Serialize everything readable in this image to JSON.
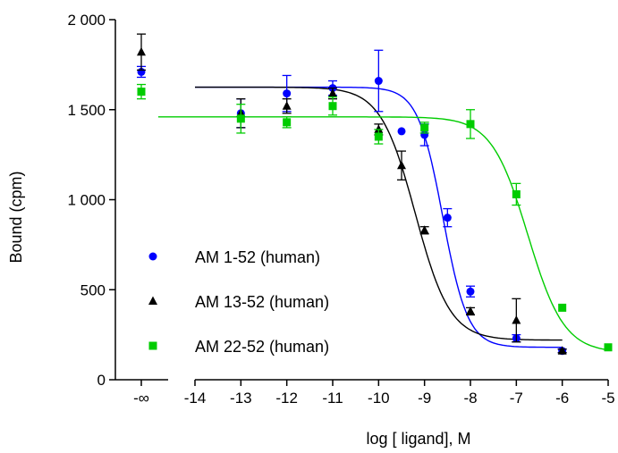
{
  "chart_data": {
    "type": "scatter",
    "title": "",
    "xlabel": "log [ ligand], M",
    "ylabel": "Bound (cpm)",
    "xlim": [
      -14,
      -5
    ],
    "ylim": [
      0,
      2000
    ],
    "x_ticks": [
      -14,
      -13,
      -12,
      -11,
      -10,
      -9,
      -8,
      -7,
      -6,
      -5
    ],
    "x_tick_labels": [
      "-14",
      "-13",
      "-12",
      "-11",
      "-10",
      "-9",
      "-8",
      "-7",
      "-6",
      "-5"
    ],
    "x_extra_tick_label": "-∞",
    "y_ticks": [
      0,
      500,
      1000,
      1500,
      2000
    ],
    "y_tick_labels": [
      "0",
      "500",
      "1 000",
      "1 500",
      "2 000"
    ],
    "grid": false,
    "legend_position": "bottom-left",
    "series": [
      {
        "name": "AM 1-52 (human)",
        "color": "#0000ff",
        "marker": "circle",
        "control": {
          "y": 1710,
          "err": 30
        },
        "x": [
          -13,
          -12,
          -11,
          -10,
          -9.5,
          -9,
          -8.5,
          -8,
          -7,
          -6
        ],
        "y": [
          1480,
          1590,
          1620,
          1660,
          1380,
          1360,
          900,
          490,
          230,
          160
        ],
        "err": [
          80,
          100,
          40,
          170,
          0,
          60,
          50,
          30,
          20,
          10
        ],
        "fit": {
          "top": 1625,
          "bottom": 180,
          "logEC50": -8.6,
          "hill": 1.6
        }
      },
      {
        "name": "AM 13-52 (human)",
        "color": "#000000",
        "marker": "triangle",
        "control": {
          "y": 1820,
          "err": 100
        },
        "x": [
          -13,
          -12,
          -11,
          -10,
          -9.5,
          -9,
          -8,
          -7,
          -6
        ],
        "y": [
          1480,
          1520,
          1590,
          1390,
          1190,
          830,
          380,
          330,
          160
        ],
        "err": [
          80,
          40,
          30,
          30,
          80,
          20,
          20,
          120,
          10
        ],
        "fit": {
          "top": 1625,
          "bottom": 220,
          "logEC50": -9.2,
          "hill": 1.15
        }
      },
      {
        "name": "AM 22-52 (human)",
        "color": "#00cc00",
        "marker": "square",
        "control": {
          "y": 1600,
          "err": 40
        },
        "x": [
          -13,
          -12,
          -11,
          -10,
          -9,
          -8,
          -7,
          -6,
          -5
        ],
        "y": [
          1450,
          1430,
          1520,
          1350,
          1400,
          1420,
          1030,
          400,
          180
        ],
        "err": [
          80,
          30,
          50,
          40,
          30,
          80,
          60,
          0,
          0
        ],
        "fit": {
          "top": 1460,
          "bottom": 150,
          "logEC50": -6.75,
          "hill": 1.1
        }
      }
    ]
  }
}
